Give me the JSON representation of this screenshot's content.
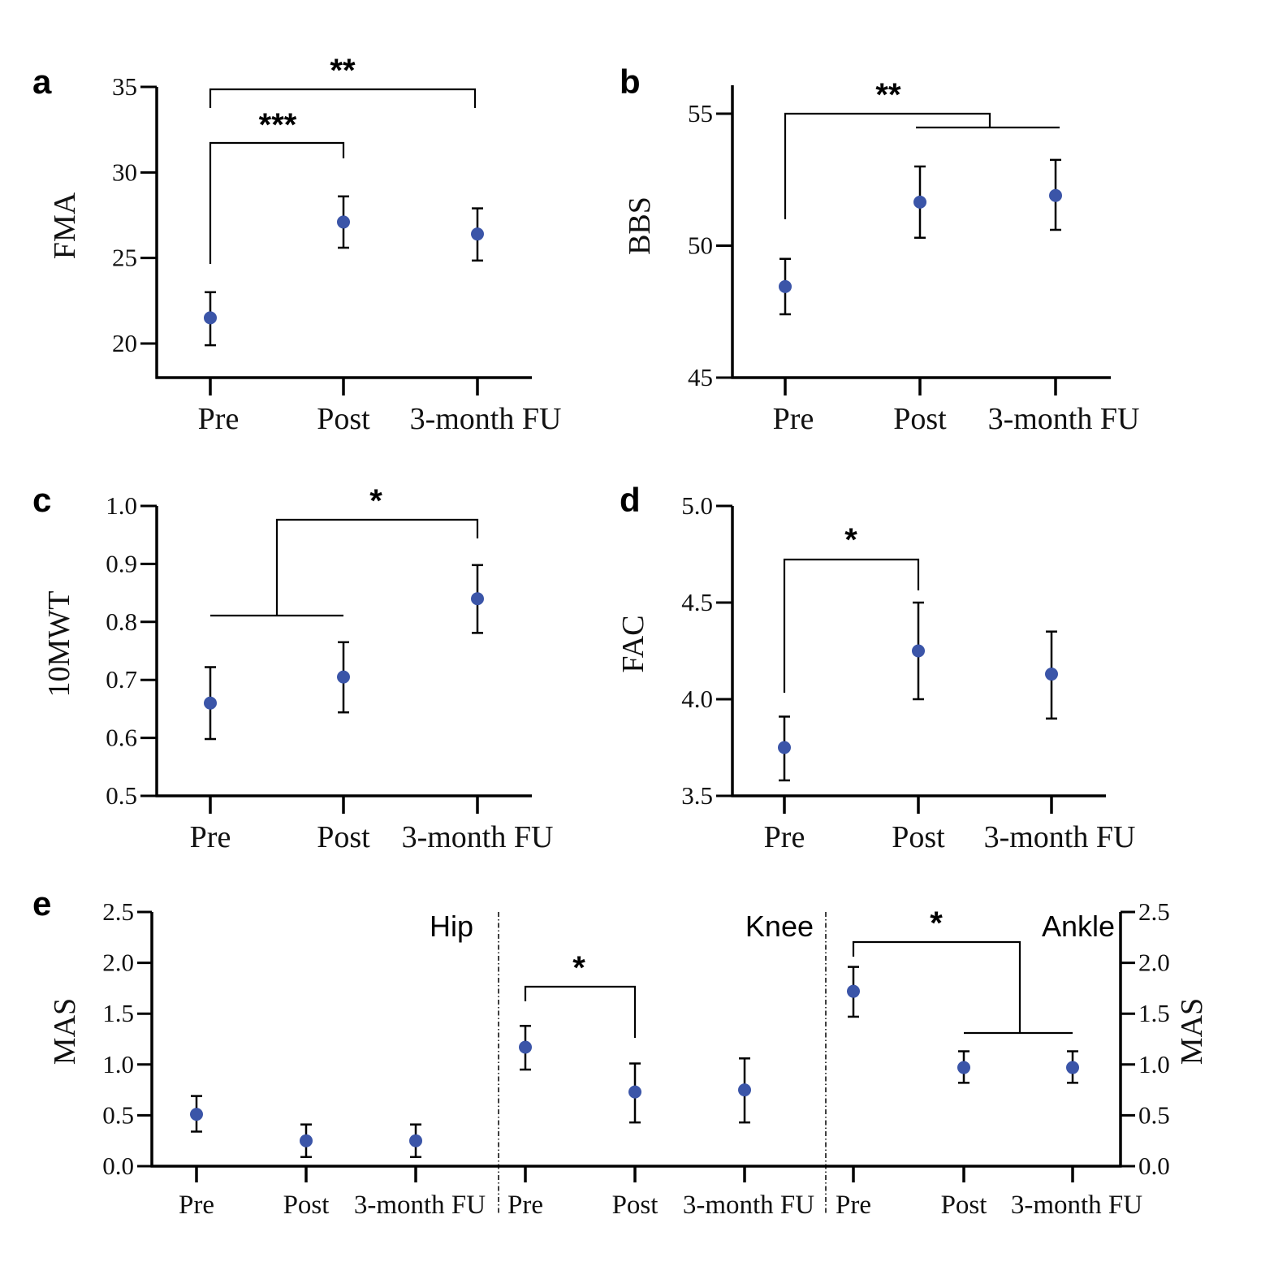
{
  "colors": {
    "marker": "#3b55a8",
    "axis": "#000000"
  },
  "chart_data": [
    {
      "panel": "a",
      "type": "scatter",
      "ylabel": "FMA",
      "categories": [
        "Pre",
        "Post",
        "3-month FU"
      ],
      "ylim": [
        18,
        35
      ],
      "yticks": [
        "20",
        "25",
        "30",
        "35"
      ],
      "values": [
        21.5,
        27.1,
        26.4
      ],
      "error_low": [
        19.9,
        25.6,
        24.85
      ],
      "error_high": [
        23.0,
        28.6,
        27.9
      ],
      "annotations": [
        {
          "from": "Pre",
          "to": "3-month FU",
          "label": "**"
        },
        {
          "from": "Pre",
          "to": "Post",
          "label": "***"
        }
      ]
    },
    {
      "panel": "b",
      "type": "scatter",
      "ylabel": "BBS",
      "categories": [
        "Pre",
        "Post",
        "3-month FU"
      ],
      "ylim": [
        45,
        56
      ],
      "yticks": [
        "45",
        "50",
        "55"
      ],
      "values": [
        48.45,
        51.65,
        51.9
      ],
      "error_low": [
        47.4,
        50.3,
        50.6
      ],
      "error_high": [
        49.5,
        53.0,
        53.25
      ],
      "annotations": [
        {
          "from": "Pre",
          "to": "Post + 3-month FU",
          "label": "**"
        }
      ]
    },
    {
      "panel": "c",
      "type": "scatter",
      "ylabel": "10MWT",
      "categories": [
        "Pre",
        "Post",
        "3-month FU"
      ],
      "ylim": [
        0.5,
        1.0
      ],
      "yticks": [
        "0.5",
        "0.6",
        "0.7",
        "0.8",
        "0.9",
        "1.0"
      ],
      "values": [
        0.66,
        0.705,
        0.84
      ],
      "error_low": [
        0.598,
        0.644,
        0.781
      ],
      "error_high": [
        0.722,
        0.765,
        0.898
      ],
      "annotations": [
        {
          "from": "Pre + Post",
          "to": "3-month FU",
          "label": "*"
        }
      ]
    },
    {
      "panel": "d",
      "type": "scatter",
      "ylabel": "FAC",
      "categories": [
        "Pre",
        "Post",
        "3-month FU"
      ],
      "ylim": [
        3.5,
        5.0
      ],
      "yticks": [
        "3.5",
        "4.0",
        "4.5",
        "5.0"
      ],
      "values": [
        3.75,
        4.25,
        4.13
      ],
      "error_low": [
        3.58,
        4.0,
        3.9
      ],
      "error_high": [
        3.91,
        4.5,
        4.35
      ],
      "annotations": [
        {
          "from": "Pre",
          "to": "Post",
          "label": "*"
        }
      ]
    },
    {
      "panel": "e",
      "type": "scatter",
      "ylabel": "MAS",
      "ylabel_right": "MAS",
      "ylim": [
        0,
        2.5
      ],
      "yticks": [
        "0.0",
        "0.5",
        "1.0",
        "1.5",
        "2.0",
        "2.5"
      ],
      "groups": [
        {
          "name": "Hip",
          "categories": [
            "Pre",
            "Post",
            "3-month FU"
          ],
          "values": [
            0.51,
            0.25,
            0.25
          ],
          "error_low": [
            0.34,
            0.09,
            0.09
          ],
          "error_high": [
            0.69,
            0.41,
            0.41
          ],
          "annotations": []
        },
        {
          "name": "Knee",
          "categories": [
            "Pre",
            "Post",
            "3-month FU"
          ],
          "values": [
            1.17,
            0.73,
            0.75
          ],
          "error_low": [
            0.95,
            0.43,
            0.43
          ],
          "error_high": [
            1.38,
            1.01,
            1.06
          ],
          "annotations": [
            {
              "from": "Pre",
              "to": "Post",
              "label": "*"
            }
          ]
        },
        {
          "name": "Ankle",
          "categories": [
            "Pre",
            "Post",
            "3-month FU"
          ],
          "values": [
            1.72,
            0.97,
            0.97
          ],
          "error_low": [
            1.47,
            0.82,
            0.82
          ],
          "error_high": [
            1.96,
            1.13,
            1.13
          ],
          "annotations": [
            {
              "from": "Pre",
              "to": "Post + 3-month FU",
              "label": "*"
            }
          ]
        }
      ]
    }
  ]
}
